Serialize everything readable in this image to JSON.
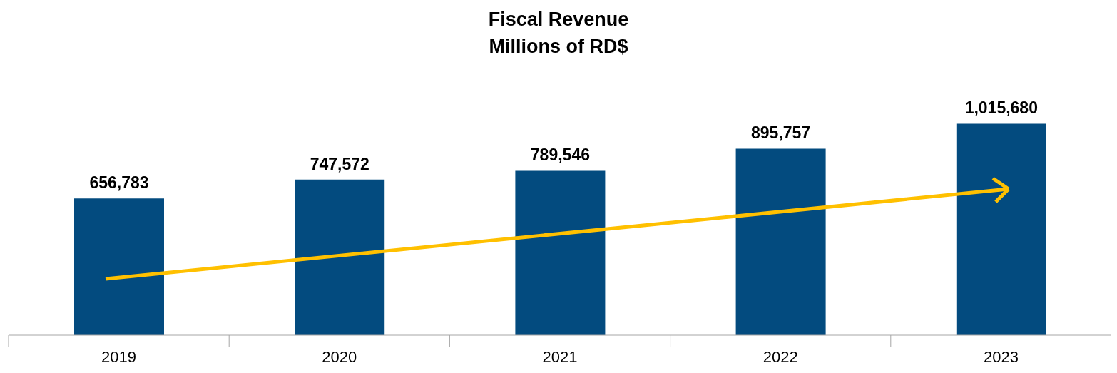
{
  "chart_data": {
    "type": "bar",
    "title": "Fiscal Revenue",
    "subtitle": "Millions of RD$",
    "categories": [
      "2019",
      "2020",
      "2021",
      "2022",
      "2023"
    ],
    "values": [
      656783,
      747572,
      789546,
      895757,
      1015680
    ],
    "value_labels": [
      "656,783",
      "747,572",
      "789,546",
      "895,757",
      "1,015,680"
    ],
    "color": "#034b7f",
    "tick_labels": "x",
    "grid": false
  }
}
